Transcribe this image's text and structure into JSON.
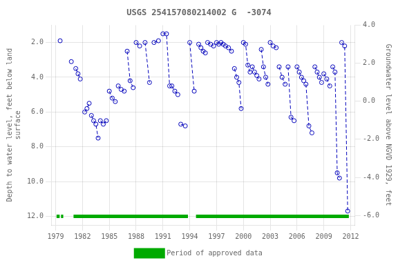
{
  "chart_data": {
    "type": "line",
    "title": "USGS 254157080214002 G  -3074",
    "ylabel": "Depth to water level, feet below land\nsurface",
    "y2label": "Groundwater level above NGVD 1929, feet",
    "xlim": [
      1978.5,
      2012.5
    ],
    "xticks": [
      1979,
      1982,
      1985,
      1988,
      1991,
      1994,
      1997,
      2000,
      2003,
      2006,
      2009,
      2012
    ],
    "ylim": [
      12.5,
      1.0
    ],
    "yticks": [
      {
        "value": 2.0,
        "label": "2.0"
      },
      {
        "value": 4.0,
        "label": "4.0"
      },
      {
        "value": 6.0,
        "label": "6.0"
      },
      {
        "value": 8.0,
        "label": "8.0"
      },
      {
        "value": 10.0,
        "label": "10.0"
      },
      {
        "value": 12.0,
        "label": "12.0"
      }
    ],
    "y2lim": [
      -6.5,
      4.0
    ],
    "y2ticks": [
      {
        "value": 4.0,
        "label": "4.0"
      },
      {
        "value": 2.0,
        "label": "2.0"
      },
      {
        "value": 0.0,
        "label": "0.0"
      },
      {
        "value": -2.0,
        "label": "-2.0"
      },
      {
        "value": -4.0,
        "label": "-4.0"
      },
      {
        "value": -6.0,
        "label": "-6.0"
      }
    ],
    "grid": true,
    "legend": "bottom",
    "series": [
      {
        "color": "#0000bb",
        "marker": "o",
        "line_style": "dashed",
        "x": [
          1979.5,
          null,
          1980.75,
          null,
          1981.25,
          1981.5,
          1981.75,
          null,
          1982.25,
          1982.5,
          1982.75,
          null,
          1983.0,
          1983.25,
          1983.5,
          1983.75,
          null,
          1984.0,
          1984.33,
          1984.67,
          null,
          1985.0,
          1985.33,
          1985.67,
          null,
          1986.0,
          1986.33,
          1986.67,
          null,
          1987.0,
          1987.33,
          1987.67,
          null,
          1988.0,
          1988.4,
          null,
          1989.0,
          1989.5,
          null,
          1990.0,
          1990.5,
          null,
          1991.0,
          1991.4,
          1991.75,
          null,
          1992.0,
          1992.33,
          1992.67,
          null,
          1993.0,
          1993.5,
          null,
          1994.0,
          1994.5,
          null,
          1995.0,
          1995.25,
          1995.5,
          1995.75,
          null,
          1996.0,
          1996.33,
          1996.67,
          null,
          1997.0,
          1997.25,
          1997.5,
          1997.75,
          null,
          1998.0,
          1998.33,
          1998.67,
          null,
          1999.0,
          1999.25,
          1999.5,
          1999.75,
          null,
          2000.0,
          2000.25,
          2000.5,
          2000.75,
          null,
          2001.0,
          2001.25,
          2001.5,
          2001.75,
          null,
          2002.0,
          2002.25,
          2002.5,
          2002.75,
          null,
          2003.0,
          2003.33,
          2003.67,
          null,
          2004.0,
          2004.33,
          2004.67,
          null,
          2005.0,
          2005.33,
          2005.67,
          null,
          2006.0,
          2006.25,
          2006.5,
          2006.75,
          null,
          2007.0,
          2007.33,
          2007.67,
          null,
          2008.0,
          2008.25,
          2008.5,
          2008.75,
          null,
          2009.0,
          2009.33,
          2009.67,
          null,
          2010.0,
          2010.25,
          2010.5,
          2010.75,
          null,
          2011.0,
          2011.33,
          2011.67
        ],
        "values": [
          1.9,
          null,
          3.1,
          null,
          3.5,
          3.8,
          4.1,
          null,
          6.0,
          5.8,
          5.5,
          null,
          6.2,
          6.5,
          6.7,
          7.5,
          null,
          6.5,
          6.7,
          6.5,
          null,
          4.8,
          5.2,
          5.4,
          null,
          4.5,
          4.7,
          4.8,
          null,
          2.5,
          4.2,
          4.6,
          null,
          2.0,
          2.2,
          null,
          2.0,
          4.3,
          null,
          2.0,
          1.9,
          null,
          1.5,
          1.5,
          4.5,
          null,
          4.5,
          4.8,
          5.0,
          null,
          6.7,
          6.8,
          null,
          2.0,
          4.8,
          null,
          2.1,
          2.3,
          2.5,
          2.6,
          null,
          2.0,
          2.1,
          2.2,
          null,
          2.0,
          2.1,
          2.0,
          2.1,
          null,
          2.2,
          2.3,
          2.5,
          null,
          3.5,
          4.0,
          4.3,
          5.8,
          null,
          2.0,
          2.1,
          3.3,
          3.7,
          null,
          3.4,
          3.7,
          3.9,
          4.1,
          null,
          2.4,
          3.4,
          4.0,
          4.4,
          null,
          2.0,
          2.2,
          2.3,
          null,
          3.4,
          4.0,
          4.4,
          null,
          3.4,
          6.3,
          6.5,
          null,
          3.4,
          3.7,
          4.0,
          4.2,
          null,
          4.4,
          6.8,
          7.2,
          null,
          3.4,
          3.7,
          4.0,
          4.3,
          null,
          3.8,
          4.1,
          4.5,
          null,
          3.4,
          3.7,
          9.5,
          9.8,
          null,
          2.0,
          2.2,
          11.7
        ]
      },
      {
        "name": "Period of approved data",
        "color": "#00aa00",
        "marker": "none",
        "line_style": "solid",
        "x": [
          1979.1,
          1979.45,
          null,
          1979.6,
          1979.85,
          null,
          1981.0,
          1993.8,
          null,
          1994.7,
          2011.8
        ],
        "values": [
          12.0,
          12.0,
          null,
          12.0,
          12.0,
          null,
          12.0,
          12.0,
          null,
          12.0,
          12.0
        ]
      }
    ]
  }
}
